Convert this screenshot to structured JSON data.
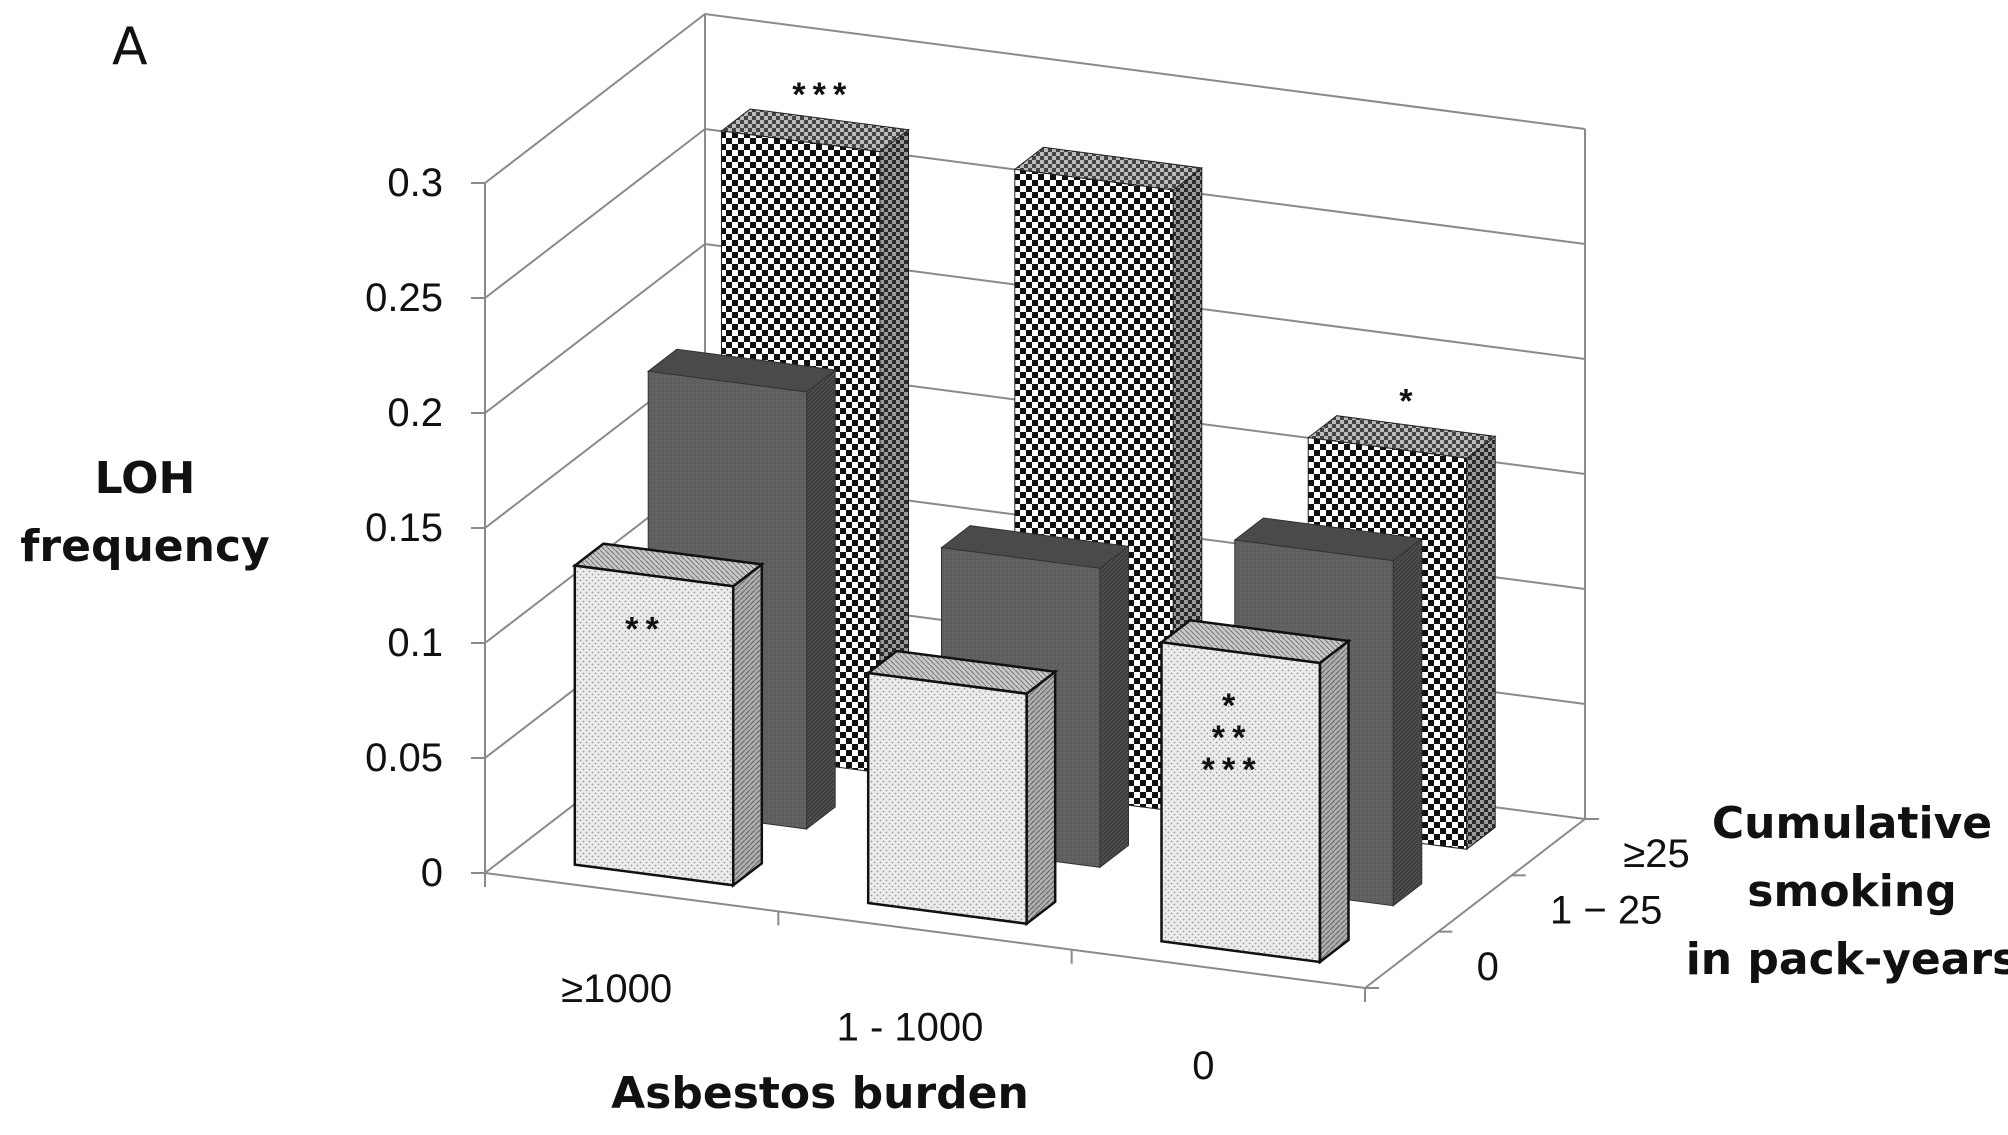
{
  "panel_label": "A",
  "chart_data": {
    "type": "bar",
    "subtype": "3d-bar",
    "title": "",
    "zlabel": [
      "LOH",
      "frequency"
    ],
    "xlabel": "Asbestos burden",
    "ylabel": [
      "Cumulative",
      "smoking",
      "in pack-years"
    ],
    "z_ticks": [
      "0",
      "0.05",
      "0.1",
      "0.15",
      "0.2",
      "0.25",
      "0.3"
    ],
    "zlim": [
      0,
      0.3
    ],
    "categories": [
      "≥1000",
      "1 - 1000",
      "0"
    ],
    "depth_categories": [
      "0",
      "1 − 25",
      "≥25"
    ],
    "series": [
      {
        "name": "0",
        "values": [
          0.13,
          0.1,
          0.13
        ],
        "annotations": [
          "**",
          "",
          "*\n**\n***"
        ]
      },
      {
        "name": "1 − 25",
        "values": [
          0.19,
          0.13,
          0.15
        ],
        "annotations": [
          "",
          "",
          ""
        ]
      },
      {
        "name": "≥25",
        "values": [
          0.27,
          0.27,
          0.17
        ],
        "annotations": [
          "***",
          "",
          "*"
        ]
      }
    ],
    "grid": true
  }
}
